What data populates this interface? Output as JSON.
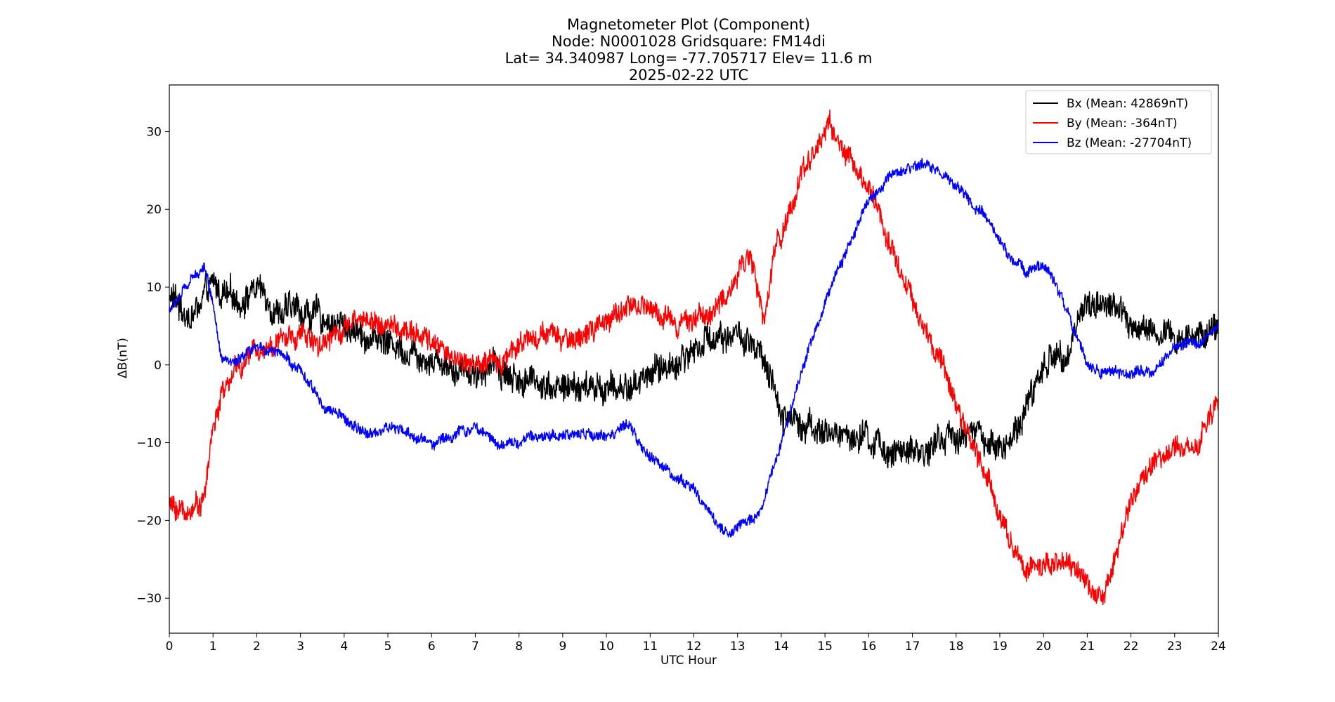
{
  "chart_data": {
    "type": "line",
    "title_lines": [
      "Magnetometer Plot (Component)",
      "Node:  N0001028     Gridsquare:  FM14di",
      "Lat= 34.340987    Long= -77.705717    Elev= 11.6 m",
      "2025-02-22  UTC"
    ],
    "xlabel": "UTC Hour",
    "ylabel": "ΔB(nT)",
    "xlim": [
      0,
      24
    ],
    "ylim": [
      -34.5,
      36
    ],
    "xticks": [
      0,
      1,
      2,
      3,
      4,
      5,
      6,
      7,
      8,
      9,
      10,
      11,
      12,
      13,
      14,
      15,
      16,
      17,
      18,
      19,
      20,
      21,
      22,
      23,
      24
    ],
    "yticks": [
      -30,
      -20,
      -10,
      0,
      10,
      20,
      30
    ],
    "ytick_labels": [
      "−30",
      "−20",
      "−10",
      "0",
      "10",
      "20",
      "30"
    ],
    "grid": false,
    "legend_position": "top-right",
    "series": [
      {
        "name": "Bx (Mean: 42869nT)",
        "color": "#000000",
        "noise": 3.2,
        "x": [
          0,
          0.5,
          1,
          1.5,
          2,
          2.5,
          3,
          3.5,
          4,
          4.5,
          5,
          5.5,
          6,
          6.5,
          7,
          7.5,
          8,
          8.5,
          9,
          9.5,
          10,
          10.5,
          11,
          11.5,
          12,
          12.5,
          13,
          13.5,
          14,
          14.5,
          15,
          15.5,
          16,
          16.5,
          17,
          17.5,
          18,
          18.5,
          19,
          19.5,
          20,
          20.5,
          21,
          21.5,
          22,
          22.5,
          23,
          23.5,
          24
        ],
        "y": [
          9,
          6,
          10,
          8,
          10,
          7,
          7,
          6,
          5,
          4,
          3,
          2,
          1,
          0,
          -1,
          0,
          -2,
          -2,
          -3,
          -3,
          -3,
          -3,
          -1,
          0,
          2,
          4,
          4,
          1,
          -6,
          -7,
          -9,
          -9,
          -10,
          -11,
          -12,
          -10,
          -9,
          -9,
          -11,
          -7,
          0,
          2,
          8,
          8,
          5,
          4,
          3,
          4,
          5
        ]
      },
      {
        "name": "By (Mean: -364nT)",
        "color": "#ff0000",
        "noise": 2.4,
        "x": [
          0,
          0.4,
          0.8,
          1,
          1.2,
          1.5,
          2,
          2.5,
          3,
          3.5,
          4,
          4.5,
          5,
          5.5,
          6,
          6.5,
          7,
          7.5,
          8,
          8.5,
          9,
          9.5,
          10,
          10.5,
          11,
          11.5,
          12,
          12.5,
          12.9,
          13.1,
          13.3,
          13.6,
          13.9,
          14.2,
          14.5,
          14.8,
          15.1,
          15.4,
          15.8,
          16.1,
          16.4,
          16.7,
          17,
          17.4,
          17.8,
          18.2,
          18.6,
          19,
          19.4,
          19.8,
          20.2,
          20.6,
          21,
          21.3,
          21.6,
          22,
          22.5,
          23,
          23.5,
          24
        ],
        "y": [
          -18,
          -19,
          -17,
          -8,
          -4,
          -1,
          2,
          3,
          4,
          3,
          5,
          6,
          5,
          4,
          3,
          1,
          0,
          0,
          3,
          4,
          3,
          4,
          5,
          8,
          7,
          6,
          6,
          7,
          10,
          14,
          14,
          5,
          16,
          20,
          25,
          28,
          31,
          28,
          24,
          22,
          17,
          13,
          8,
          3,
          -2,
          -8,
          -13,
          -19,
          -25,
          -26,
          -26,
          -26,
          -28,
          -30,
          -25,
          -18,
          -13,
          -11,
          -10,
          -5
        ]
      },
      {
        "name": "Bz (Mean: -27704nT)",
        "color": "#0000ff",
        "noise": 1.2,
        "x": [
          0,
          0.4,
          0.8,
          1,
          1.2,
          1.5,
          2,
          2.5,
          3,
          3.5,
          4,
          4.5,
          5,
          5.5,
          6,
          6.5,
          7,
          7.5,
          8,
          8.5,
          9,
          9.5,
          10,
          10.5,
          11,
          11.5,
          12,
          12.5,
          12.8,
          13,
          13.5,
          14,
          14.5,
          15,
          15.5,
          16,
          16.5,
          17,
          17.3,
          17.8,
          18.3,
          18.8,
          19.2,
          19.6,
          20,
          20.5,
          21,
          21.5,
          22,
          22.5,
          23,
          23.5,
          24
        ],
        "y": [
          7,
          10,
          13,
          8,
          1,
          0,
          2,
          2,
          -1,
          -5,
          -7,
          -9,
          -8,
          -9,
          -10,
          -9,
          -8,
          -10,
          -10,
          -9,
          -9,
          -9,
          -9,
          -8,
          -12,
          -14,
          -16,
          -20,
          -22,
          -21,
          -19,
          -10,
          0,
          8,
          15,
          21,
          24,
          25,
          26,
          24,
          21,
          18,
          14,
          12,
          13,
          8,
          0,
          -1,
          -1,
          -1,
          2,
          3,
          5
        ]
      }
    ]
  }
}
